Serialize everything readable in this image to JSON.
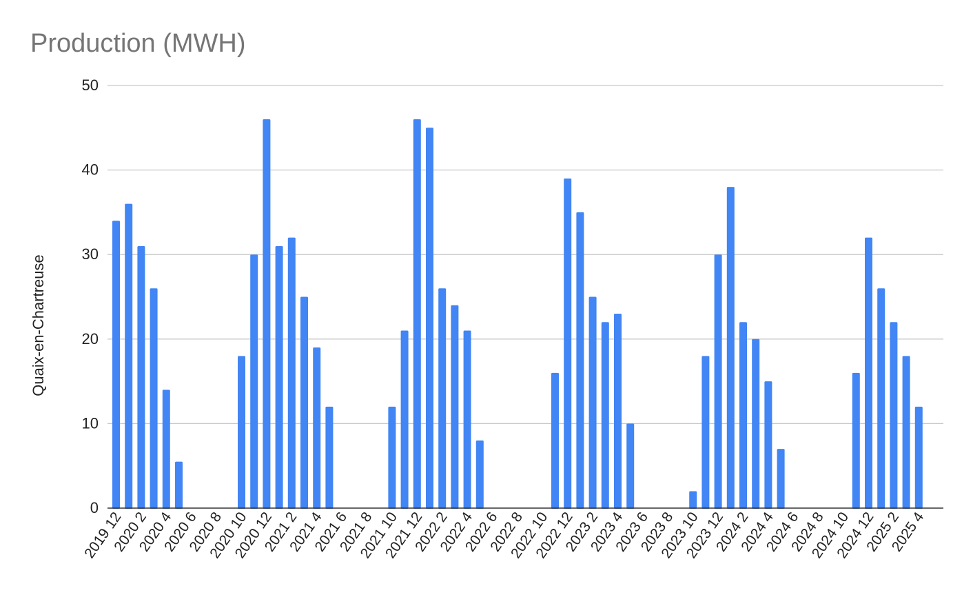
{
  "chart_data": {
    "type": "bar",
    "title": "Production (MWH)",
    "xlabel": "",
    "ylabel": "Quaix-en-Chartreuse",
    "ylim": [
      0,
      50
    ],
    "yticks": [
      0,
      10,
      20,
      30,
      40,
      50
    ],
    "grid": true,
    "legend": "none",
    "colors": {
      "bar": "#4285f4",
      "title": "#757575",
      "text": "#222222",
      "grid": "#c8c8c8"
    },
    "categories": [
      "2019 12",
      "2020 1",
      "2020 2",
      "2020 3",
      "2020 4",
      "2020 5",
      "2020 6",
      "2020 7",
      "2020 8",
      "2020 9",
      "2020 10",
      "2020 11",
      "2020 12",
      "2021 1",
      "2021 2",
      "2021 3",
      "2021 4",
      "2021 5",
      "2021 6",
      "2021 7",
      "2021 8",
      "2021 9",
      "2021 10",
      "2021 11",
      "2021 12",
      "2022 1",
      "2022 2",
      "2022 3",
      "2022 4",
      "2022 5",
      "2022 6",
      "2022 7",
      "2022 8",
      "2022 9",
      "2022 10",
      "2022 11",
      "2022 12",
      "2023 1",
      "2023 2",
      "2023 3",
      "2023 4",
      "2023 5",
      "2023 6",
      "2023 7",
      "2023 8",
      "2023 9",
      "2023 10",
      "2023 11",
      "2023 12",
      "2024 1",
      "2024 2",
      "2024 3",
      "2024 4",
      "2024 5",
      "2024 6",
      "2024 7",
      "2024 8",
      "2024 9",
      "2024 10",
      "2024 11",
      "2024 12",
      "2025 1",
      "2025 2",
      "2025 3",
      "2025 4"
    ],
    "tick_labels": [
      "2019 12",
      "2020 2",
      "2020 4",
      "2020 6",
      "2020 8",
      "2020 10",
      "2020 12",
      "2021 2",
      "2021 4",
      "2021 6",
      "2021 8",
      "2021 10",
      "2021 12",
      "2022 2",
      "2022 4",
      "2022 6",
      "2022 8",
      "2022 10",
      "2022 12",
      "2023 2",
      "2023 4",
      "2023 6",
      "2023 8",
      "2023 10",
      "2023 12",
      "2024 2",
      "2024 4",
      "2024 6",
      "2024 8",
      "2024 10",
      "2024 12",
      "2025 2",
      "2025 4"
    ],
    "values": [
      34,
      36,
      31,
      26,
      14,
      5.5,
      0,
      0,
      0,
      0,
      18,
      30,
      46,
      31,
      32,
      25,
      19,
      12,
      0,
      0,
      0,
      0,
      12,
      21,
      46,
      45,
      26,
      24,
      21,
      8,
      0,
      0,
      0,
      0,
      0,
      16,
      39,
      35,
      25,
      22,
      23,
      10,
      0,
      0,
      0,
      0,
      2,
      18,
      30,
      38,
      22,
      20,
      15,
      7,
      0,
      0,
      0,
      0,
      0,
      16,
      32,
      26,
      22,
      18,
      12
    ]
  }
}
